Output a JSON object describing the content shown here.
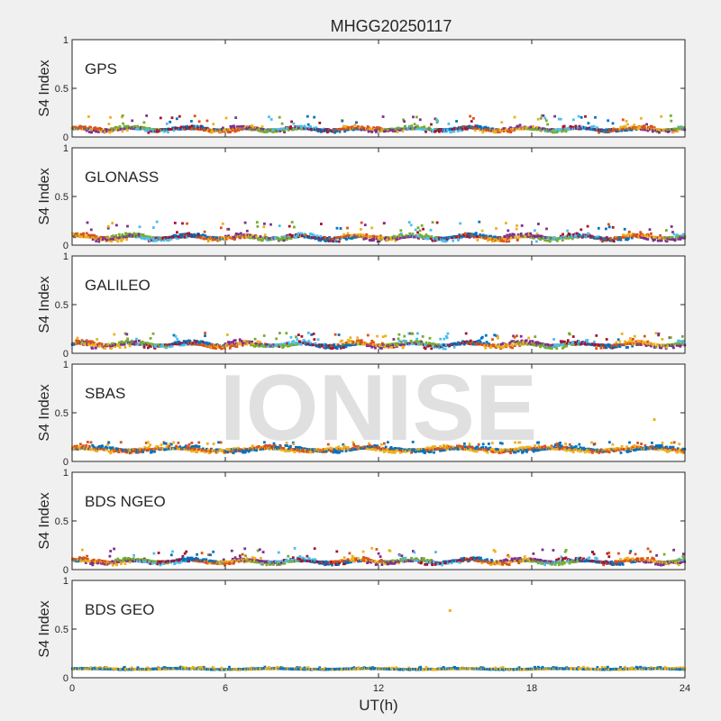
{
  "title": "MHGG20250117",
  "watermark": "IONISE",
  "chart_data": [
    {
      "type": "scatter",
      "label": "GPS",
      "ylabel": "S4 Index",
      "ylim": [
        0,
        1
      ],
      "yticks": [
        "0",
        "0.5",
        "1"
      ],
      "xlim": [
        0,
        24
      ],
      "baseline_range": [
        0.04,
        0.12
      ],
      "peak_max": 0.22,
      "series_colors": [
        "#0072BD",
        "#D95319",
        "#EDB120",
        "#7E2F8E",
        "#77AC30",
        "#4DBEEE",
        "#A2142F"
      ]
    },
    {
      "type": "scatter",
      "label": "GLONASS",
      "ylabel": "S4 Index",
      "ylim": [
        0,
        1
      ],
      "yticks": [
        "0",
        "0.5",
        "1"
      ],
      "xlim": [
        0,
        24
      ],
      "baseline_range": [
        0.03,
        0.13
      ],
      "peak_max": 0.24,
      "series_colors": [
        "#0072BD",
        "#D95319",
        "#EDB120",
        "#7E2F8E",
        "#77AC30",
        "#4DBEEE",
        "#A2142F"
      ]
    },
    {
      "type": "scatter",
      "label": "GALILEO",
      "ylabel": "S4 Index",
      "ylim": [
        0,
        1
      ],
      "yticks": [
        "0",
        "0.5",
        "1"
      ],
      "xlim": [
        0,
        24
      ],
      "baseline_range": [
        0.04,
        0.14
      ],
      "peak_max": 0.21,
      "series_colors": [
        "#0072BD",
        "#D95319",
        "#EDB120",
        "#7E2F8E",
        "#77AC30",
        "#4DBEEE",
        "#A2142F"
      ]
    },
    {
      "type": "scatter",
      "label": "SBAS",
      "ylabel": "S4 Index",
      "ylim": [
        0,
        1
      ],
      "yticks": [
        "0",
        "0.5",
        "1"
      ],
      "xlim": [
        0,
        24
      ],
      "baseline_range": [
        0.08,
        0.17
      ],
      "peak_max": 0.2,
      "outliers": [
        {
          "x": 22.8,
          "y": 0.43
        }
      ],
      "series_colors": [
        "#0072BD",
        "#D95319",
        "#EDB120"
      ]
    },
    {
      "type": "scatter",
      "label": "BDS NGEO",
      "ylabel": "S4 Index",
      "ylim": [
        0,
        1
      ],
      "yticks": [
        "0",
        "0.5",
        "1"
      ],
      "xlim": [
        0,
        24
      ],
      "baseline_range": [
        0.04,
        0.13
      ],
      "peak_max": 0.22,
      "series_colors": [
        "#0072BD",
        "#D95319",
        "#EDB120",
        "#7E2F8E",
        "#77AC30",
        "#4DBEEE",
        "#A2142F"
      ]
    },
    {
      "type": "scatter",
      "label": "BDS GEO",
      "ylabel": "S4 Index",
      "ylim": [
        0,
        1
      ],
      "yticks": [
        "0",
        "0.5",
        "1"
      ],
      "xlim": [
        0,
        24
      ],
      "baseline_range": [
        0.08,
        0.1
      ],
      "peak_max": 0.11,
      "outliers": [
        {
          "x": 14.8,
          "y": 0.69
        }
      ],
      "series_colors": [
        "#EDB120",
        "#0072BD"
      ]
    }
  ],
  "xaxis": {
    "label": "UT(h)",
    "ticks": [
      0,
      6,
      12,
      18,
      24
    ]
  }
}
